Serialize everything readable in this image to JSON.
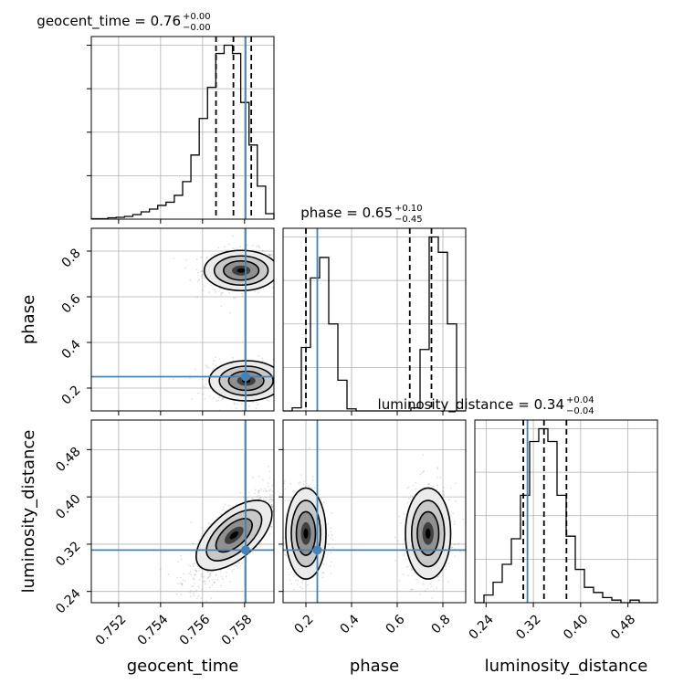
{
  "chart_data": {
    "type": "corner",
    "parameters": [
      {
        "name": "geocent_time",
        "label": "geocent_time",
        "range": [
          0.7507,
          0.7594
        ],
        "ticks": [
          0.752,
          0.754,
          0.756,
          0.758
        ],
        "tick_labels": [
          "0.752",
          "0.754",
          "0.756",
          "0.758"
        ],
        "injected": 0.75805,
        "quantiles": [
          0.75664,
          0.75747,
          0.75832
        ],
        "title": {
          "name": "geocent_time",
          "value": "0.76",
          "plus": "+0.00",
          "minus": "−0.00"
        },
        "hist": [
          0.1,
          0.1,
          0.3,
          0.4,
          0.6,
          1,
          1.6,
          2.2,
          3,
          3.7,
          5.2,
          8.2,
          14,
          22,
          28.8,
          36.2,
          38,
          36.2,
          25.5,
          16.2,
          7.2,
          1.2
        ]
      },
      {
        "name": "phase",
        "label": "phase",
        "range": [
          0.1,
          0.9
        ],
        "ticks": [
          0.2,
          0.4,
          0.6,
          0.8
        ],
        "tick_labels": [
          "0.2",
          "0.4",
          "0.6",
          "0.8"
        ],
        "injected": 0.25,
        "quantiles": [
          0.2,
          0.655,
          0.75
        ],
        "title": {
          "name": "phase",
          "value": "0.65",
          "plus": "+0.10",
          "minus": "−0.45"
        },
        "hist": [
          0,
          0.3,
          6.2,
          13,
          15,
          8.5,
          3,
          0.2,
          0,
          0,
          0,
          0,
          0,
          0,
          0.3,
          6,
          17,
          15.5,
          8.5,
          0
        ]
      },
      {
        "name": "luminosity_distance",
        "label": "luminosity_distance",
        "range": [
          0.221,
          0.53
        ],
        "ticks": [
          0.24,
          0.32,
          0.4,
          0.48
        ],
        "tick_labels": [
          "0.24",
          "0.32",
          "0.40",
          "0.48"
        ],
        "injected": 0.31,
        "quantiles": [
          0.303,
          0.338,
          0.376
        ],
        "title": {
          "name": "luminosity_distance",
          "value": "0.34",
          "plus": "+0.04",
          "minus": "−0.04"
        },
        "hist": [
          0,
          0.3,
          0.8,
          1.5,
          2.5,
          4.2,
          6.3,
          6.8,
          6.3,
          4.2,
          2.6,
          1.3,
          0.6,
          0.4,
          0.2,
          0.1,
          0,
          0.1,
          0,
          0
        ]
      }
    ],
    "pair_distributions": [
      {
        "x": "geocent_time",
        "y": "phase",
        "modes": [
          {
            "center": [
              0.75784,
              0.715
            ],
            "spread": [
              0.0008,
              0.04
            ],
            "weight": 0.5
          },
          {
            "center": [
              0.75808,
              0.232
            ],
            "spread": [
              0.0008,
              0.04
            ],
            "weight": 0.5
          }
        ]
      },
      {
        "x": "geocent_time",
        "y": "luminosity_distance",
        "modes": [
          {
            "center": [
              0.7575,
              0.335
            ],
            "spread": [
              0.0009,
              0.035
            ],
            "weight": 1.0,
            "correlation": 0.8
          }
        ]
      },
      {
        "x": "phase",
        "y": "luminosity_distance",
        "modes": [
          {
            "center": [
              0.2,
              0.338
            ],
            "spread": [
              0.04,
              0.035
            ],
            "weight": 0.5
          },
          {
            "center": [
              0.735,
              0.338
            ],
            "spread": [
              0.045,
              0.035
            ],
            "weight": 0.5
          }
        ]
      }
    ],
    "styles": {
      "truth_color": "#4682b4",
      "contour_color": "#000000",
      "hist_color": "#000000",
      "grid": true,
      "quantile_line": "dashed"
    }
  }
}
